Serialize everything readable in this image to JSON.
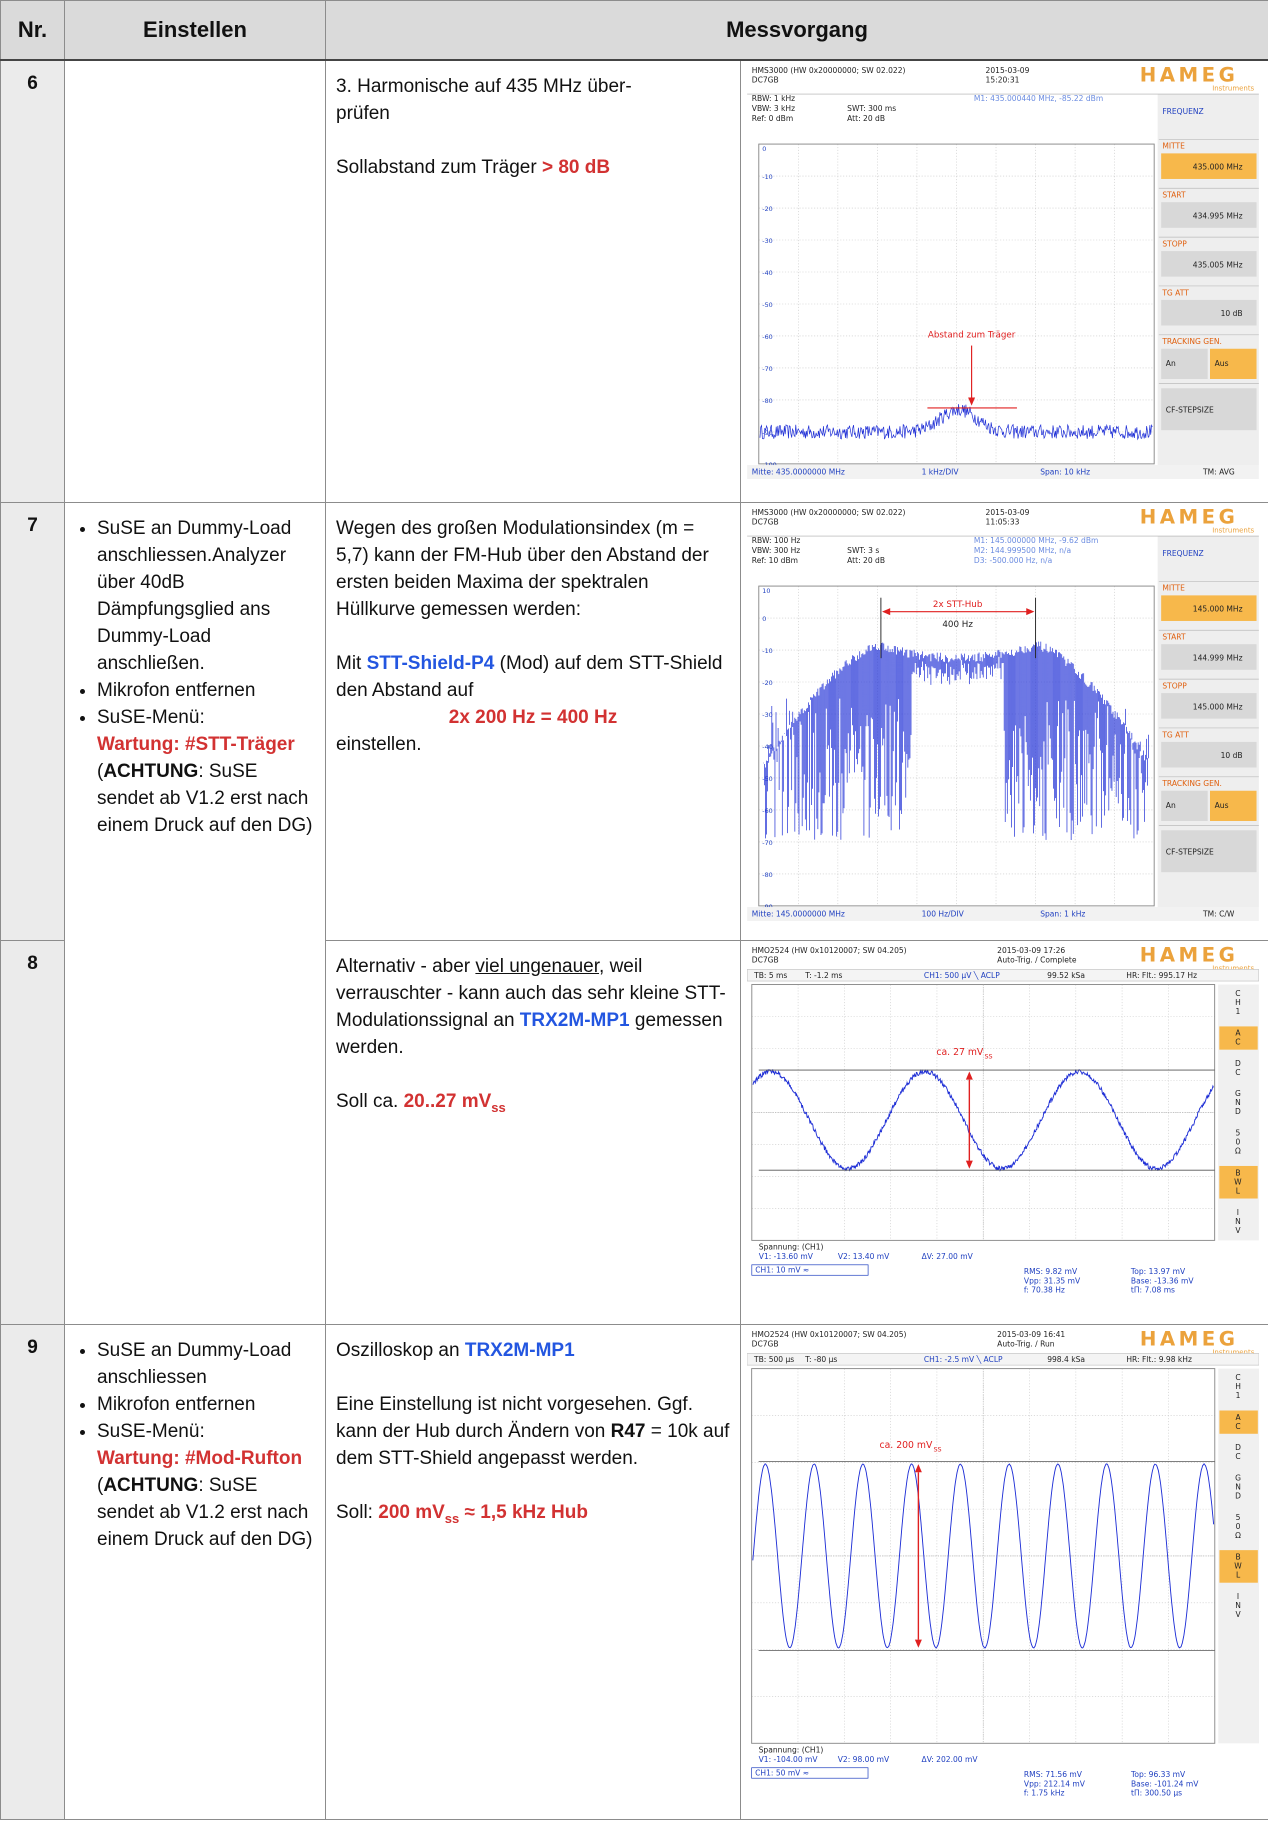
{
  "header": {
    "nr": "Nr.",
    "einstellen": "Einstellen",
    "messvorgang": "Messvorgang"
  },
  "rows": [
    {
      "nr": "6",
      "text": [
        [
          "3. Harmonische auf 435 MHz über-",
          "prüfen"
        ],
        [
          "Sollabstand zum Träger ",
          "> 80 dB"
        ]
      ],
      "screen": {
        "model": "HMS3000 (HW 0x20000000; SW 02.022)",
        "user": "DC7GB",
        "date": "2015-03-09",
        "time": "15:20:31",
        "brand": "HAMEG",
        "brand_sub": "Instruments",
        "params": [
          "RBW: 1 kHz",
          "VBW: 3 kHz",
          "Ref: 0 dBm"
        ],
        "params2": [
          "SWT: 300 ms",
          "Att: 20 dB"
        ],
        "markers": [
          "M1: 435.000440 MHz, -85.22 dBm"
        ],
        "menu_title": "FREQUENZ",
        "menu": [
          {
            "label": "MITTE",
            "value": "435.000 MHz"
          },
          {
            "label": "START",
            "value": "434.995 MHz"
          },
          {
            "label": "STOPP",
            "value": "435.005 MHz"
          },
          {
            "label": "TG ATT",
            "value": "10 dB"
          },
          {
            "label": "TRACKING GEN.",
            "options": [
              "An",
              "Aus"
            ]
          },
          {
            "button": "CF-STEPSIZE"
          }
        ],
        "ylabels": [
          "0",
          "-10",
          "-20",
          "-30",
          "-40",
          "-50",
          "-60",
          "-70",
          "-80",
          "-90",
          "-100"
        ],
        "footer": [
          "Mitte: 435.0000000 MHz",
          "1 kHz/DIV",
          "Span: 10 kHz",
          "TM: AVG"
        ],
        "annotations": [
          "Abstand zum Träger"
        ]
      }
    },
    {
      "nr": "7",
      "einstellen": [
        [
          "SuSE an Dummy-Load anschliessen.Analyzer über 40dB Dämpfungsglied ans Dummy-Load anschließen."
        ],
        [
          "Mikrofon entfernen"
        ],
        [
          "SuSE-Menü:",
          "Wartung: #STT-Träger",
          "(",
          "ACHTUNG",
          ": SuSE sendet ab V1.2 erst nach einem Druck auf den DG)"
        ]
      ],
      "text": [
        [
          "Wegen des großen Modulationsindex (m = 5,7) kann der FM-Hub über den Abstand der ersten beiden Maxima der spektralen Hüllkurve gemessen werden:"
        ],
        [
          "Mit ",
          "STT-Shield-P4",
          " (Mod) auf dem STT-Shield den Abstand auf"
        ],
        [
          "2x 200 Hz = 400 Hz"
        ],
        [
          "einstellen."
        ]
      ],
      "screen": {
        "model": "HMS3000 (HW 0x20000000; SW 02.022)",
        "user": "DC7GB",
        "date": "2015-03-09",
        "time": "11:05:33",
        "brand": "HAMEG",
        "brand_sub": "Instruments",
        "params": [
          "RBW: 100 Hz",
          "VBW: 300 Hz",
          "Ref: 10 dBm"
        ],
        "params2": [
          "SWT: 3 s",
          "Att: 20 dB"
        ],
        "markers": [
          "M1: 145.000000 MHz, -9.62 dBm",
          "M2: 144.999500 MHz, n/a",
          "D3: -500.000 Hz, n/a"
        ],
        "menu_title": "FREQUENZ",
        "menu": [
          {
            "label": "MITTE",
            "value": "145.000 MHz"
          },
          {
            "label": "START",
            "value": "144.999 MHz"
          },
          {
            "label": "STOPP",
            "value": "145.000 MHz"
          },
          {
            "label": "TG ATT",
            "value": "10 dB"
          },
          {
            "label": "TRACKING GEN.",
            "options": [
              "An",
              "Aus"
            ]
          },
          {
            "button": "CF-STEPSIZE"
          }
        ],
        "ylabels": [
          "10",
          "0",
          "-10",
          "-20",
          "-30",
          "-40",
          "-50",
          "-60",
          "-70",
          "-80",
          "-90"
        ],
        "footer": [
          "Mitte: 145.0000000 MHz",
          "100 Hz/DIV",
          "Span: 1 kHz",
          "TM: C/W"
        ],
        "annotations": [
          "2x STT-Hub",
          "400 Hz"
        ]
      }
    },
    {
      "nr": "8",
      "text": [
        [
          "Alternativ - aber ",
          "viel ungenauer",
          ", weil verrauschter - kann auch das sehr kleine STT-Modulationssignal an ",
          "TRX2M-MP1",
          " gemessen werden."
        ],
        [
          "Soll ca. ",
          "20..27 mV",
          "ss"
        ]
      ],
      "screen": {
        "model": "HMO2524 (HW 0x10120007; SW 04.205)",
        "user": "DC7GB",
        "date": "2015-03-09 17:26",
        "mode": "Auto-Trig. / Complete",
        "brand": "HAMEG",
        "brand_sub": "Instruments",
        "info": [
          "TB: 5 ms",
          "T: -1.2 ms",
          "CH1: 500 µV ╲ ACLP",
          "99.52 kSa",
          "HR: Flt.: 995.17 Hz"
        ],
        "side": [
          "CH1",
          "AC",
          "DC",
          "GND",
          "50Ω",
          "BWL",
          "INV"
        ],
        "annotation": [
          "ca. 27 mV",
          "SS"
        ],
        "cursor_title": "Spannung: (CH1)",
        "cursors": [
          "V1: -13.60 mV",
          "V2: 13.40 mV",
          "ΔV: 27.00 mV"
        ],
        "channel": "CH1: 10 mV ≈",
        "meas": [
          "RMS: 9.82 mV",
          "Vpp: 31.35 mV",
          "f: 70.38 Hz"
        ],
        "meas2": [
          "Top: 13.97 mV",
          "Base: -13.36 mV",
          "tΠ: 7.08 ms"
        ]
      }
    },
    {
      "nr": "9",
      "einstellen": [
        [
          "SuSE an Dummy-Load anschliessen"
        ],
        [
          "Mikrofon entfernen"
        ],
        [
          "SuSE-Menü:",
          "Wartung: #Mod-Rufton",
          "(",
          "ACHTUNG",
          ": SuSE sendet ab V1.2 erst nach einem Druck auf den DG)"
        ]
      ],
      "text": [
        [
          "Oszilloskop an ",
          "TRX2M-MP1"
        ],
        [
          "Eine Einstellung ist nicht vorgesehen. Ggf. kann der Hub durch Ändern von ",
          "R47",
          " = 10k auf dem STT-Shield angepasst werden."
        ],
        [
          "Soll: ",
          "200 mV",
          "ss",
          "≈ 1,5 kHz Hub"
        ]
      ],
      "screen": {
        "model": "HMO2524 (HW 0x10120007; SW 04.205)",
        "user": "DC7GB",
        "date": "2015-03-09 16:41",
        "mode": "Auto-Trig. / Run",
        "brand": "HAMEG",
        "brand_sub": "Instruments",
        "info": [
          "TB: 500 µs",
          "T: -80 µs",
          "CH1: -2.5 mV ╲ ACLP",
          "998.4 kSa",
          "HR: Flt.: 9.98 kHz"
        ],
        "side": [
          "CH1",
          "AC",
          "DC",
          "GND",
          "50Ω",
          "BWL",
          "INV"
        ],
        "annotation": [
          "ca. 200 mV",
          "SS"
        ],
        "cursor_title": "Spannung: (CH1)",
        "cursors": [
          "V1: -104.00 mV",
          "V2: 98.00 mV",
          "ΔV: 202.00 mV"
        ],
        "channel": "CH1: 50 mV ≈",
        "meas": [
          "RMS: 71.56 mV",
          "Vpp: 212.14 mV",
          "f: 1.75 kHz"
        ],
        "meas2": [
          "Top: 96.33 mV",
          "Base: -101.24 mV",
          "tΠ: 300.50 µs"
        ]
      }
    }
  ]
}
